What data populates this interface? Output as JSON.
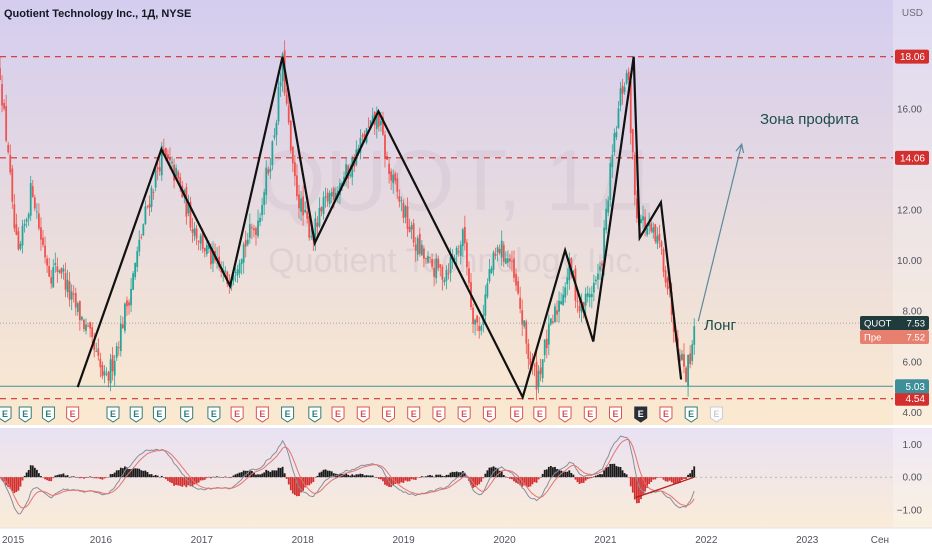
{
  "header": {
    "title": "Quotient Technology Inc., 1Д, NYSE",
    "currency": "USD",
    "watermark_ticker": "QUOT, 1Д",
    "watermark_name": "Quotient Technology Inc."
  },
  "labels": {
    "profit_zone": "Зона профита",
    "long": "Лонг"
  },
  "price_badges": {
    "last_name": "QUOT",
    "last_value": "7.53",
    "pre_name": "Пре",
    "pre_value": "7.52",
    "support": "5.03"
  },
  "earnings_marker": "E",
  "colors": {
    "up": "#26a69a",
    "down": "#ef5350",
    "level_line": "#d32f2f",
    "pattern": "#111111",
    "arrow": "#5a8a9a",
    "last_badge": "#1f3b3b",
    "pre_badge": "#e8806f",
    "support_badge": "#3f8f9a",
    "bg_top": "#d4cdef",
    "bg_bottom": "#fbe9cf"
  },
  "chart_data": [
    {
      "type": "candlestick",
      "title": "Quotient Technology Inc., 1Д, NYSE",
      "ylim": [
        3.5,
        20.3
      ],
      "xlim": [
        2015.0,
        2023.85
      ],
      "x_ticks": [
        {
          "x": 2015.0,
          "label": "2015"
        },
        {
          "x": 2016.0,
          "label": "2016"
        },
        {
          "x": 2017.0,
          "label": "2017"
        },
        {
          "x": 2018.0,
          "label": "2018"
        },
        {
          "x": 2019.0,
          "label": "2019"
        },
        {
          "x": 2020.0,
          "label": "2020"
        },
        {
          "x": 2021.0,
          "label": "2021"
        },
        {
          "x": 2022.0,
          "label": "2022"
        },
        {
          "x": 2023.0,
          "label": "2023"
        },
        {
          "x": 2023.72,
          "label": "Сен"
        }
      ],
      "y_ticks": [
        4,
        6,
        8,
        10,
        12,
        14,
        16,
        18
      ],
      "levels": [
        {
          "value": 18.06,
          "label": "18.06"
        },
        {
          "value": 14.06,
          "label": "14.06"
        },
        {
          "value": 4.54,
          "label": "4.54"
        }
      ],
      "support_line": {
        "value": 5.03,
        "label": "5.03"
      },
      "last_price": 7.53,
      "price_path": [
        [
          2015.0,
          17.5
        ],
        [
          2015.05,
          15.2
        ],
        [
          2015.08,
          14.5
        ],
        [
          2015.12,
          12.0
        ],
        [
          2015.18,
          10.0
        ],
        [
          2015.25,
          11.5
        ],
        [
          2015.32,
          13.0
        ],
        [
          2015.4,
          11.0
        ],
        [
          2015.5,
          9.5
        ],
        [
          2015.6,
          9.8
        ],
        [
          2015.7,
          8.5
        ],
        [
          2015.8,
          7.8
        ],
        [
          2015.9,
          6.8
        ],
        [
          2016.0,
          5.6
        ],
        [
          2016.05,
          5.1
        ],
        [
          2016.15,
          6.5
        ],
        [
          2016.3,
          9.0
        ],
        [
          2016.45,
          12.0
        ],
        [
          2016.6,
          14.2
        ],
        [
          2016.75,
          13.3
        ],
        [
          2016.9,
          11.5
        ],
        [
          2017.1,
          10.0
        ],
        [
          2017.25,
          9.2
        ],
        [
          2017.4,
          10.5
        ],
        [
          2017.55,
          11.5
        ],
        [
          2017.7,
          14.5
        ],
        [
          2017.8,
          17.8
        ],
        [
          2017.9,
          13.5
        ],
        [
          2018.0,
          11.8
        ],
        [
          2018.1,
          11.0
        ],
        [
          2018.25,
          12.5
        ],
        [
          2018.45,
          13.5
        ],
        [
          2018.6,
          14.8
        ],
        [
          2018.75,
          15.7
        ],
        [
          2018.85,
          13.5
        ],
        [
          2018.95,
          12.5
        ],
        [
          2019.1,
          10.8
        ],
        [
          2019.25,
          9.8
        ],
        [
          2019.4,
          9.5
        ],
        [
          2019.5,
          10.2
        ],
        [
          2019.6,
          11.0
        ],
        [
          2019.68,
          8.0
        ],
        [
          2019.75,
          7.2
        ],
        [
          2019.85,
          9.5
        ],
        [
          2019.95,
          10.5
        ],
        [
          2020.05,
          10.0
        ],
        [
          2020.15,
          8.2
        ],
        [
          2020.25,
          6.0
        ],
        [
          2020.32,
          5.3
        ],
        [
          2020.42,
          6.8
        ],
        [
          2020.55,
          8.5
        ],
        [
          2020.65,
          9.8
        ],
        [
          2020.75,
          8.0
        ],
        [
          2020.85,
          8.8
        ],
        [
          2020.95,
          9.5
        ],
        [
          2021.05,
          13.5
        ],
        [
          2021.15,
          16.5
        ],
        [
          2021.22,
          17.5
        ],
        [
          2021.3,
          12.0
        ],
        [
          2021.42,
          11.2
        ],
        [
          2021.55,
          10.5
        ],
        [
          2021.62,
          9.0
        ],
        [
          2021.68,
          7.5
        ],
        [
          2021.75,
          6.2
        ],
        [
          2021.8,
          5.6
        ],
        [
          2021.85,
          6.5
        ],
        [
          2021.88,
          7.53
        ]
      ],
      "pattern_lines": [
        [
          [
            2015.77,
            5.0
          ],
          [
            2016.6,
            14.4
          ],
          [
            2017.28,
            9.0
          ],
          [
            2017.8,
            18.06
          ],
          [
            2018.12,
            10.7
          ],
          [
            2018.75,
            15.9
          ],
          [
            2020.18,
            4.6
          ],
          [
            2020.6,
            10.4
          ],
          [
            2020.88,
            6.8
          ],
          [
            2021.28,
            18.06
          ],
          [
            2021.34,
            10.9
          ],
          [
            2021.55,
            12.3
          ],
          [
            2021.75,
            5.3
          ]
        ]
      ],
      "projection_arrow": [
        [
          2021.92,
          7.6
        ],
        [
          2022.35,
          14.6
        ]
      ],
      "earnings_x": [
        2015.05,
        2015.25,
        2015.48,
        2015.72,
        2016.12,
        2016.35,
        2016.58,
        2016.85,
        2017.12,
        2017.35,
        2017.6,
        2017.85,
        2018.12,
        2018.35,
        2018.6,
        2018.85,
        2019.1,
        2019.35,
        2019.6,
        2019.85,
        2020.12,
        2020.35,
        2020.6,
        2020.85,
        2021.1,
        2021.35,
        2021.6,
        2021.85,
        2022.1
      ],
      "earnings_types": [
        "up",
        "up",
        "up",
        "down",
        "up",
        "up",
        "up",
        "up",
        "up",
        "down",
        "down",
        "up",
        "up",
        "down",
        "down",
        "down",
        "down",
        "down",
        "down",
        "down",
        "down",
        "down",
        "down",
        "down",
        "down",
        "neutral",
        "down",
        "up",
        "future"
      ]
    },
    {
      "type": "oscillator",
      "ylim": [
        -1.55,
        1.5
      ],
      "y_ticks": [
        {
          "value": 1.0,
          "label": "1.00"
        },
        {
          "value": 0.0,
          "label": "0.00"
        },
        {
          "value": -1.0,
          "label": "−1.00"
        }
      ],
      "divergence_line": [
        [
          2021.3,
          -0.62
        ],
        [
          2021.88,
          0.0
        ]
      ]
    }
  ]
}
